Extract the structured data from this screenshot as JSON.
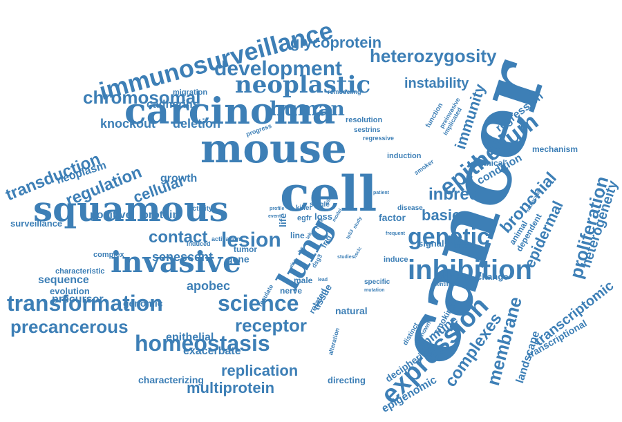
{
  "colors": {
    "word": "#3d7fb6",
    "background": "#ffffff"
  },
  "words": [
    "cancer",
    "cell",
    "mouse",
    "carcinoma",
    "squamous",
    "lung",
    "invasive",
    "inhibition",
    "expression",
    "genetic",
    "epithelium",
    "immunosurveillance",
    "neoplastic",
    "human",
    "lesion",
    "transformation",
    "science",
    "homeostasis",
    "development",
    "heterozygosity",
    "chromosomal",
    "precancerous",
    "receptor",
    "proliferation",
    "membrane",
    "complexes",
    "contact",
    "inbred",
    "basic",
    "bronchial",
    "epidermal",
    "immunity",
    "transduction",
    "regulation",
    "cellular",
    "multiprotein",
    "replication",
    "glycoprotein",
    "instability",
    "heterogeneity",
    "transcriptomic",
    "knockout",
    "deletion",
    "senescent",
    "apobec",
    "immune",
    "epigenomic",
    "landscape",
    "transcriptional",
    "factor",
    "condition",
    "regression",
    "positive",
    "protein",
    "growth",
    "neoplasm",
    "cadherins",
    "sequence",
    "precursor",
    "genomic",
    "evolution",
    "characteristic",
    "complex",
    "surveillance",
    "epithelial",
    "exacerbate",
    "characterizing",
    "directing",
    "deciphering",
    "smoking",
    "natural",
    "tissue",
    "nerve",
    "male",
    "gene",
    "tumor",
    "signal",
    "breast",
    "animal",
    "dependent",
    "mechanism",
    "cadherin",
    "change",
    "induce",
    "disease",
    "clinical",
    "induction",
    "migration",
    "resolution",
    "sestrins",
    "regressive",
    "progress",
    "remodeling",
    "preinvasive",
    "implicated",
    "function",
    "molecular",
    "smoker",
    "activity",
    "loss",
    "killer",
    "single",
    "egfr",
    "line",
    "life",
    "related",
    "distinct",
    "unknown",
    "alteration",
    "specific",
    "mutation",
    "identifies",
    "induced",
    "activation",
    "event",
    "profile",
    "patient",
    "frequent",
    "studies",
    "regulate",
    "dsg3",
    "frig",
    "type",
    "lead",
    "study",
    "hs",
    "ribbing",
    "model",
    "tp53",
    "lab",
    "also",
    "nsclc"
  ]
}
